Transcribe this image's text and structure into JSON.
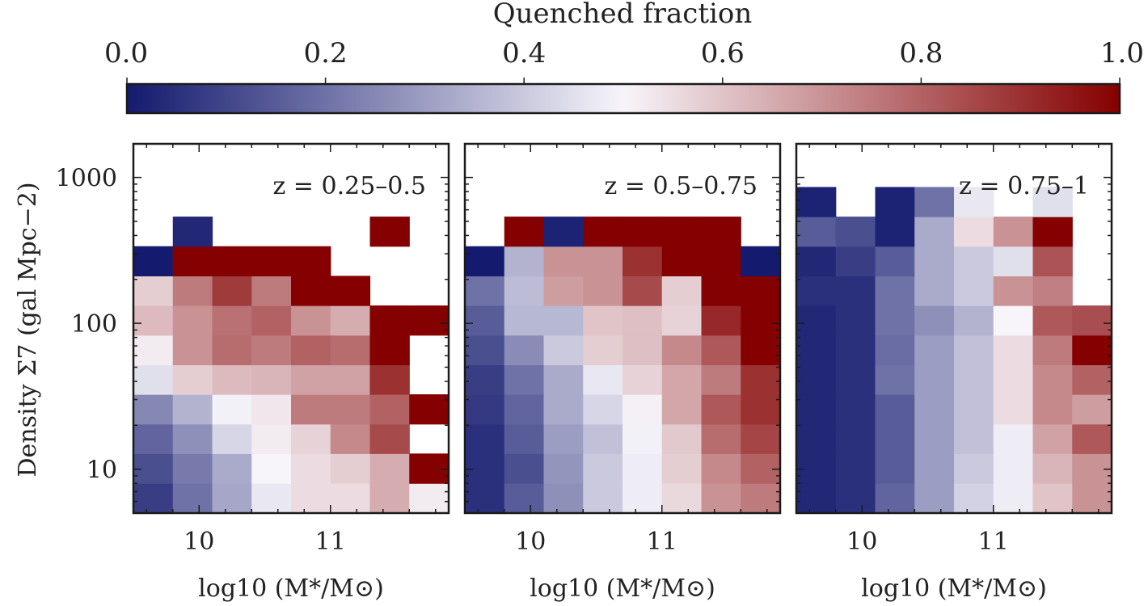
{
  "chart_data": {
    "type": "heatmap",
    "colorbar": {
      "title": "Quenched fraction",
      "ticks": [
        0.0,
        0.2,
        0.4,
        0.6,
        0.8,
        1.0
      ],
      "tick_labels": [
        "0.0",
        "0.2",
        "0.4",
        "0.6",
        "0.8",
        "1.0"
      ],
      "range": [
        0,
        1
      ],
      "colors": {
        "low": "#141a6e",
        "mid": "#f7f5fa",
        "high": "#850000"
      }
    },
    "xlabel": "log10 (M*/M⊙)",
    "ylabel": "Density Σ7 (gal Mpc−2)",
    "x_ticks": [
      10,
      11
    ],
    "x_tick_labels": [
      "10",
      "11"
    ],
    "y_ticks": [
      10,
      100,
      1000
    ],
    "y_tick_labels": [
      "10",
      "100",
      "1000"
    ],
    "y_scale": "log",
    "xlim": [
      9.5,
      11.9
    ],
    "ylim": [
      5,
      1700
    ],
    "x_bin_edges": [
      9.5,
      9.8,
      10.1,
      10.4,
      10.7,
      11.0,
      11.3,
      11.6,
      11.9
    ],
    "y_bin_edges": [
      5.0,
      8.0,
      12.8,
      20.4,
      32.6,
      52.0,
      83.0,
      132.5,
      211.5,
      337.6,
      538.8,
      860.0
    ],
    "panels": [
      {
        "label": "z = 0.25–0.5",
        "grid": [
          [
            0.08,
            0.2,
            0.32,
            0.47,
            0.55,
            0.55,
            0.65,
            0.52
          ],
          [
            0.12,
            0.22,
            0.33,
            0.5,
            0.55,
            0.58,
            0.65,
            1.0
          ],
          [
            0.17,
            0.27,
            0.43,
            0.52,
            0.57,
            0.72,
            0.85,
            null
          ],
          [
            0.25,
            0.35,
            0.49,
            0.53,
            0.75,
            0.75,
            0.8,
            1.0
          ],
          [
            0.45,
            0.58,
            0.62,
            0.63,
            0.67,
            0.67,
            0.9,
            null
          ],
          [
            0.52,
            0.7,
            0.78,
            0.75,
            0.8,
            0.78,
            1.0,
            null
          ],
          [
            0.62,
            0.7,
            0.77,
            0.8,
            0.7,
            0.65,
            1.0,
            1.0
          ],
          [
            0.58,
            0.75,
            0.88,
            0.75,
            1.0,
            1.0,
            null,
            null
          ],
          [
            0.0,
            1.0,
            1.0,
            1.0,
            1.0,
            null,
            null,
            null
          ],
          [
            null,
            0.03,
            null,
            null,
            null,
            null,
            1.0,
            null
          ],
          [
            null,
            null,
            null,
            null,
            null,
            null,
            null,
            null
          ]
        ]
      },
      {
        "label": "z = 0.5–0.75",
        "grid": [
          [
            0.05,
            0.15,
            0.27,
            0.4,
            0.48,
            0.56,
            0.7,
            0.75
          ],
          [
            0.05,
            0.12,
            0.28,
            0.4,
            0.48,
            0.58,
            0.72,
            0.8
          ],
          [
            0.05,
            0.15,
            0.3,
            0.38,
            0.49,
            0.59,
            0.78,
            0.86
          ],
          [
            0.07,
            0.17,
            0.33,
            0.43,
            0.51,
            0.66,
            0.82,
            0.9
          ],
          [
            0.08,
            0.2,
            0.33,
            0.47,
            0.57,
            0.66,
            0.75,
            0.9
          ],
          [
            0.12,
            0.26,
            0.4,
            0.58,
            0.61,
            0.72,
            0.82,
            1.0
          ],
          [
            0.15,
            0.36,
            0.36,
            0.6,
            0.61,
            0.57,
            0.92,
            1.0
          ],
          [
            0.2,
            0.37,
            0.68,
            0.7,
            0.85,
            0.58,
            1.0,
            1.0
          ],
          [
            0.0,
            0.35,
            0.7,
            0.7,
            0.9,
            1.0,
            1.0,
            0.0
          ],
          [
            null,
            1.0,
            0.02,
            1.0,
            1.0,
            1.0,
            1.0,
            null
          ],
          [
            null,
            null,
            null,
            null,
            null,
            null,
            null,
            null
          ]
        ]
      },
      {
        "label": "z = 0.75–1",
        "grid": [
          [
            0.03,
            0.05,
            0.17,
            0.3,
            0.42,
            0.48,
            0.6,
            0.7
          ],
          [
            0.03,
            0.05,
            0.15,
            0.3,
            0.4,
            0.48,
            0.63,
            0.7
          ],
          [
            0.03,
            0.05,
            0.15,
            0.3,
            0.38,
            0.48,
            0.67,
            0.82
          ],
          [
            0.03,
            0.05,
            0.15,
            0.3,
            0.38,
            0.55,
            0.72,
            0.68
          ],
          [
            0.03,
            0.05,
            0.2,
            0.3,
            0.38,
            0.55,
            0.72,
            0.8
          ],
          [
            0.03,
            0.05,
            0.19,
            0.3,
            0.38,
            0.55,
            0.75,
            1.0
          ],
          [
            0.03,
            0.05,
            0.2,
            0.27,
            0.35,
            0.5,
            0.82,
            0.84
          ],
          [
            0.05,
            0.05,
            0.2,
            0.33,
            0.4,
            0.7,
            0.74,
            null
          ],
          [
            0.03,
            0.08,
            0.15,
            0.33,
            0.4,
            0.45,
            0.83,
            null
          ],
          [
            0.15,
            0.12,
            0.02,
            0.33,
            0.55,
            0.7,
            1.0,
            null
          ],
          [
            0.02,
            null,
            0.02,
            0.2,
            0.47,
            null,
            0.45,
            null
          ]
        ]
      }
    ]
  }
}
